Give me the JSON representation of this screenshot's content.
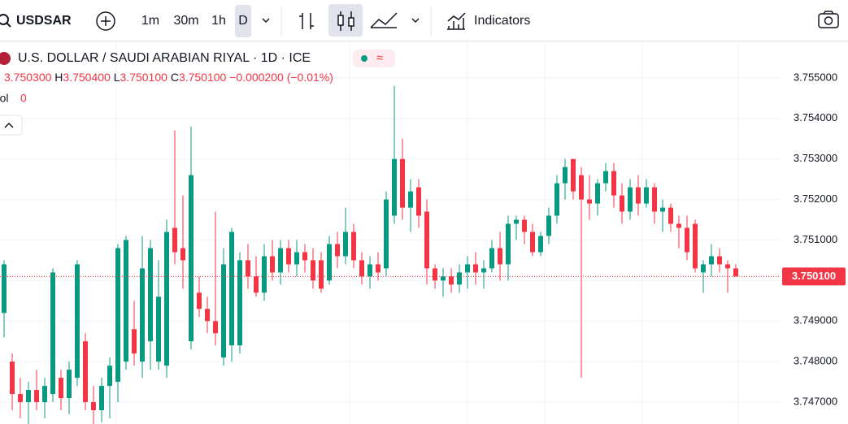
{
  "toolbar": {
    "symbol": "USDSAR",
    "intervals": [
      "1m",
      "30m",
      "1h",
      "D"
    ],
    "indicators": "Indicators"
  },
  "legend": {
    "title": "U.S. DOLLAR / SAUDI ARABIAN RIYAL · 1D · ICE",
    "open": "3.750300",
    "high_label": "H",
    "high": "3.750400",
    "low_label": "L",
    "low": "3.750100",
    "close_label": "C",
    "close": "3.750100",
    "change": "−0.000200 (−0.01%)",
    "volume_label": "Vol",
    "volume": "0"
  },
  "chart_data": {
    "type": "candlestick",
    "up_color": "#089981",
    "down_color": "#f23645",
    "grid": true,
    "ylim": [
      3.74646,
      3.7559
    ],
    "yticks": [
      {
        "value": 3.747,
        "label": "3.747000"
      },
      {
        "value": 3.748,
        "label": "3.748000"
      },
      {
        "value": 3.749,
        "label": "3.749000"
      },
      {
        "value": 3.75,
        "label": "3.750000"
      },
      {
        "value": 3.751,
        "label": "3.751000"
      },
      {
        "value": 3.752,
        "label": "3.752000"
      },
      {
        "value": 3.753,
        "label": "3.753000"
      },
      {
        "value": 3.754,
        "label": "3.754000"
      },
      {
        "value": 3.755,
        "label": "3.755000"
      }
    ],
    "last_price": {
      "value": 3.7501,
      "label": "3.750100"
    },
    "candles": [
      [
        3.7492,
        3.7505,
        3.7486,
        3.7504
      ],
      [
        3.748,
        3.7482,
        3.7468,
        3.7472
      ],
      [
        3.7472,
        3.7476,
        3.7466,
        3.747
      ],
      [
        3.747,
        3.7475,
        3.7464,
        3.7473
      ],
      [
        3.7473,
        3.7478,
        3.7468,
        3.747
      ],
      [
        3.747,
        3.7476,
        3.7466,
        3.7474
      ],
      [
        3.7472,
        3.7503,
        3.747,
        3.7502
      ],
      [
        3.7476,
        3.7478,
        3.7468,
        3.7471
      ],
      [
        3.7471,
        3.748,
        3.7467,
        3.7478
      ],
      [
        3.7476,
        3.7505,
        3.7474,
        3.7504
      ],
      [
        3.7485,
        3.7487,
        3.7468,
        3.747
      ],
      [
        3.747,
        3.7474,
        3.7464,
        3.7468
      ],
      [
        3.7468,
        3.7476,
        3.7465,
        3.7474
      ],
      [
        3.7474,
        3.7481,
        3.7466,
        3.7479
      ],
      [
        3.7475,
        3.7509,
        3.747,
        3.7508
      ],
      [
        3.748,
        3.7511,
        3.7478,
        3.751
      ],
      [
        3.7488,
        3.7495,
        3.7479,
        3.7482
      ],
      [
        3.748,
        3.7511,
        3.7476,
        3.7503
      ],
      [
        3.7485,
        3.751,
        3.7478,
        3.7508
      ],
      [
        3.748,
        3.7505,
        3.7478,
        3.7496
      ],
      [
        3.7479,
        3.7515,
        3.7476,
        3.7512
      ],
      [
        3.7513,
        3.7537,
        3.7504,
        3.7507
      ],
      [
        3.7508,
        3.7521,
        3.7498,
        3.7505
      ],
      [
        3.7485,
        3.7538,
        3.7483,
        3.7526
      ],
      [
        3.7497,
        3.7501,
        3.7491,
        3.7493
      ],
      [
        3.7493,
        3.7496,
        3.7487,
        3.749
      ],
      [
        3.749,
        3.7517,
        3.7484,
        3.7487
      ],
      [
        3.7481,
        3.7508,
        3.7479,
        3.7504
      ],
      [
        3.7484,
        3.7513,
        3.748,
        3.7512
      ],
      [
        3.7484,
        3.7507,
        3.7482,
        3.7505
      ],
      [
        3.7505,
        3.7509,
        3.7498,
        3.7501
      ],
      [
        3.7501,
        3.7506,
        3.7496,
        3.7497
      ],
      [
        3.7497,
        3.7509,
        3.7495,
        3.7506
      ],
      [
        3.7506,
        3.751,
        3.75,
        3.7502
      ],
      [
        3.7502,
        3.751,
        3.7499,
        3.7508
      ],
      [
        3.7508,
        3.751,
        3.7502,
        3.7504
      ],
      [
        3.7504,
        3.751,
        3.7501,
        3.7507
      ],
      [
        3.7507,
        3.7509,
        3.7502,
        3.7505
      ],
      [
        3.7505,
        3.7508,
        3.7498,
        3.75
      ],
      [
        3.7505,
        3.7507,
        3.7497,
        3.7498
      ],
      [
        3.75,
        3.7511,
        3.7499,
        3.7509
      ],
      [
        3.7509,
        3.7512,
        3.7503,
        3.7506
      ],
      [
        3.7506,
        3.7518,
        3.7504,
        3.7512
      ],
      [
        3.7512,
        3.7514,
        3.7503,
        3.7505
      ],
      [
        3.7505,
        3.7507,
        3.7499,
        3.7501
      ],
      [
        3.7501,
        3.7506,
        3.7498,
        3.7504
      ],
      [
        3.7504,
        3.7507,
        3.75,
        3.7502
      ],
      [
        3.7503,
        3.7522,
        3.7501,
        3.752
      ],
      [
        3.7516,
        3.7548,
        3.7514,
        3.753
      ],
      [
        3.753,
        3.7535,
        3.7515,
        3.7518
      ],
      [
        3.7518,
        3.7525,
        3.7512,
        3.7522
      ],
      [
        3.7523,
        3.7525,
        3.7513,
        3.7516
      ],
      [
        3.7517,
        3.752,
        3.7499,
        3.7503
      ],
      [
        3.7503,
        3.7504,
        3.7498,
        3.75
      ],
      [
        3.75,
        3.7503,
        3.7496,
        3.7501
      ],
      [
        3.7501,
        3.7503,
        3.7497,
        3.7499
      ],
      [
        3.7499,
        3.7504,
        3.7497,
        3.7502
      ],
      [
        3.7502,
        3.7506,
        3.7498,
        3.7504
      ],
      [
        3.7504,
        3.7507,
        3.7499,
        3.7502
      ],
      [
        3.7502,
        3.7505,
        3.7498,
        3.7503
      ],
      [
        3.7503,
        3.751,
        3.7502,
        3.7508
      ],
      [
        3.7508,
        3.7512,
        3.75,
        3.7504
      ],
      [
        3.7504,
        3.7516,
        3.75,
        3.7514
      ],
      [
        3.7514,
        3.7516,
        3.751,
        3.7515
      ],
      [
        3.7515,
        3.7516,
        3.7509,
        3.7512
      ],
      [
        3.7512,
        3.7514,
        3.7506,
        3.7507
      ],
      [
        3.7507,
        3.7512,
        3.7506,
        3.7511
      ],
      [
        3.7511,
        3.7518,
        3.7509,
        3.7516
      ],
      [
        3.7516,
        3.7526,
        3.7514,
        3.7524
      ],
      [
        3.7524,
        3.753,
        3.752,
        3.7528
      ],
      [
        3.753,
        3.753,
        3.752,
        3.7522
      ],
      [
        3.7526,
        3.7528,
        3.7476,
        3.752
      ],
      [
        3.752,
        3.7526,
        3.7515,
        3.7519
      ],
      [
        3.7519,
        3.7525,
        3.7516,
        3.7524
      ],
      [
        3.7524,
        3.7529,
        3.7522,
        3.7527
      ],
      [
        3.7527,
        3.7529,
        3.7518,
        3.7521
      ],
      [
        3.7521,
        3.7524,
        3.7514,
        3.7517
      ],
      [
        3.7517,
        3.7525,
        3.7515,
        3.7523
      ],
      [
        3.7523,
        3.7526,
        3.7516,
        3.7519
      ],
      [
        3.7519,
        3.7525,
        3.7518,
        3.7523
      ],
      [
        3.7523,
        3.7524,
        3.7514,
        3.7517
      ],
      [
        3.7517,
        3.752,
        3.7512,
        3.7518
      ],
      [
        3.7518,
        3.7519,
        3.7512,
        3.7514
      ],
      [
        3.7514,
        3.7516,
        3.7508,
        3.7513
      ],
      [
        3.7513,
        3.7516,
        3.7505,
        3.7507
      ],
      [
        3.7514,
        3.7515,
        3.7502,
        3.7503
      ],
      [
        3.7502,
        3.7505,
        3.7497,
        3.7504
      ],
      [
        3.7504,
        3.7509,
        3.7501,
        3.7506
      ],
      [
        3.7506,
        3.7508,
        3.7502,
        3.7504
      ],
      [
        3.7504,
        3.7505,
        3.7497,
        3.7503
      ],
      [
        3.7503,
        3.7504,
        3.7501,
        3.7501
      ]
    ]
  }
}
